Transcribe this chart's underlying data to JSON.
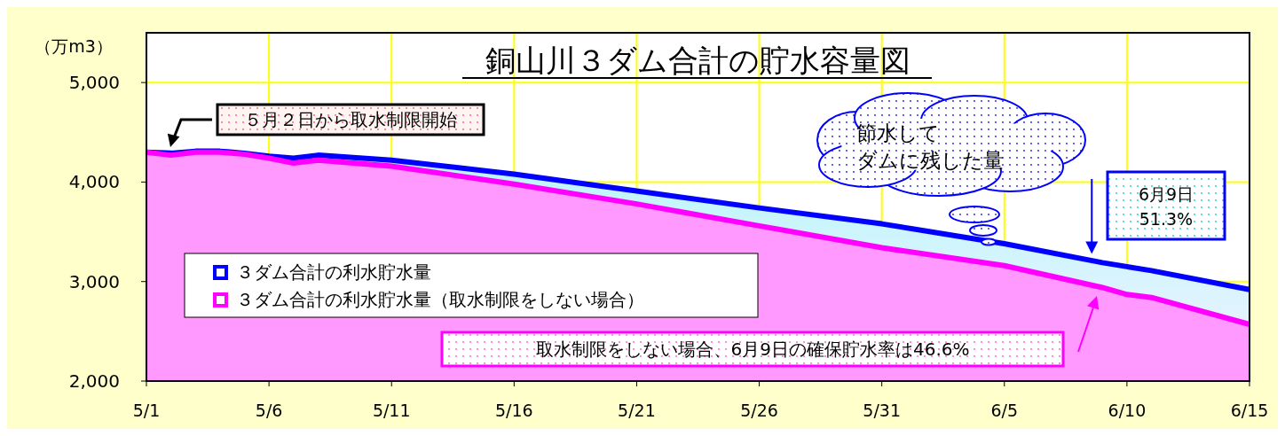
{
  "chart_data": {
    "type": "area",
    "title": "銅山川３ダム合計の貯水容量図",
    "ylabel": "（万m3）",
    "x": [
      "--05-01",
      "--05-02",
      "--05-03",
      "--05-04",
      "--05-05",
      "--05-06",
      "--05-07",
      "--05-08",
      "--05-11",
      "--05-16",
      "--05-21",
      "--05-26",
      "--05-31",
      "--06-05",
      "--06-09",
      "--06-10",
      "--06-11",
      "--06-15"
    ],
    "series": [
      {
        "name": "３ダム合計の利水貯水量",
        "color": "#0000ff",
        "values": [
          4300,
          4290,
          4310,
          4310,
          4290,
          4260,
          4240,
          4270,
          4220,
          4080,
          3910,
          3740,
          3580,
          3380,
          3190,
          3150,
          3110,
          2920
        ]
      },
      {
        "name": "３ダム合計の利水貯水量（取水制限をしない場合）",
        "color": "#ff00ff",
        "values": [
          4300,
          4270,
          4300,
          4300,
          4280,
          4240,
          4190,
          4220,
          4160,
          3980,
          3780,
          3560,
          3340,
          3160,
          2940,
          2870,
          2840,
          2570
        ]
      }
    ],
    "xlim": [
      "--05-01",
      "--06-15"
    ],
    "xticks": [
      {
        "value": "--05-01",
        "label": "5/1"
      },
      {
        "value": "--05-06",
        "label": "5/6"
      },
      {
        "value": "--05-11",
        "label": "5/11"
      },
      {
        "value": "--05-16",
        "label": "5/16"
      },
      {
        "value": "--05-21",
        "label": "5/21"
      },
      {
        "value": "--05-26",
        "label": "5/26"
      },
      {
        "value": "--05-31",
        "label": "5/31"
      },
      {
        "value": "--06-05",
        "label": "6/5"
      },
      {
        "value": "--06-10",
        "label": "6/10"
      },
      {
        "value": "--06-15",
        "label": "6/15"
      }
    ],
    "ylim": [
      2000,
      5500
    ],
    "yticks": [
      {
        "value": 2000,
        "label": "2,000"
      },
      {
        "value": 3000,
        "label": "3,000"
      },
      {
        "value": 4000,
        "label": "4,000"
      },
      {
        "value": 5000,
        "label": "5,000"
      }
    ],
    "grid": true,
    "legend": "left",
    "annotations": [
      "５月２日から取水制限開始",
      "節水して",
      {
        "text": "6月9日\n51.3%",
        "x": "--06-09",
        "y": 3190
      },
      "取水制限をしない場合、6月9日の確保貯水率は46.6%",
      "ダムに残した量"
    ]
  }
}
